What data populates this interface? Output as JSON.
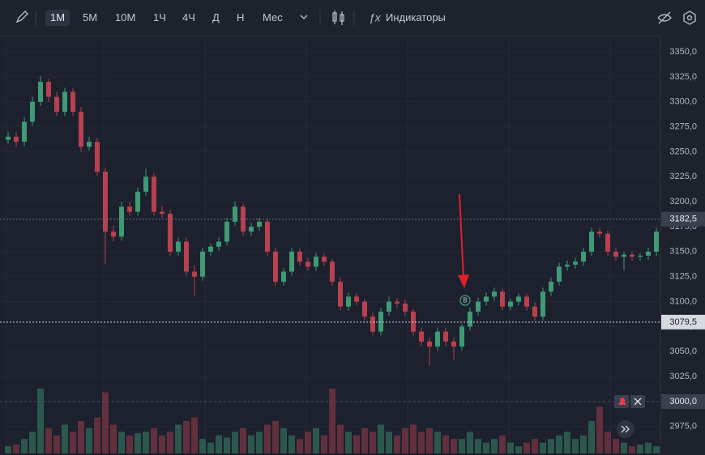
{
  "toolbar": {
    "timeframes": [
      "1M",
      "5M",
      "10M",
      "1Ч",
      "4Ч",
      "Д",
      "Н",
      "Мес"
    ],
    "indicators": "Индикаторы"
  },
  "marker": "B",
  "chart_data": {
    "type": "candlestick",
    "open": [
      3262,
      3265,
      3260,
      3280,
      3300,
      3320,
      3305,
      3290,
      3310,
      3290,
      3255,
      3260,
      3230,
      3170,
      3165,
      3195,
      3190,
      3210,
      3225,
      3190,
      3188,
      3150,
      3160,
      3130,
      3125,
      3150,
      3155,
      3160,
      3180,
      3195,
      3170,
      3175,
      3180,
      3150,
      3120,
      3130,
      3150,
      3140,
      3135,
      3145,
      3140,
      3120,
      3095,
      3105,
      3100,
      3085,
      3070,
      3090,
      3100,
      3098,
      3090,
      3070,
      3060,
      3055,
      3070,
      3060,
      3055,
      3075,
      3090,
      3100,
      3105,
      3110,
      3095,
      3100,
      3105,
      3095,
      3085,
      3110,
      3120,
      3135,
      3137,
      3140,
      3150,
      3170,
      3168,
      3150,
      3145,
      3147,
      3145,
      3146,
      3150
    ],
    "high": [
      3270,
      3270,
      3285,
      3305,
      3326,
      3323,
      3310,
      3314,
      3314,
      3295,
      3265,
      3264,
      3234,
      3176,
      3200,
      3200,
      3214,
      3233,
      3229,
      3196,
      3192,
      3164,
      3164,
      3136,
      3154,
      3158,
      3164,
      3184,
      3200,
      3198,
      3179,
      3184,
      3183,
      3154,
      3134,
      3154,
      3153,
      3144,
      3149,
      3148,
      3143,
      3124,
      3109,
      3108,
      3103,
      3089,
      3094,
      3105,
      3104,
      3102,
      3093,
      3074,
      3064,
      3074,
      3074,
      3064,
      3078,
      3094,
      3104,
      3109,
      3114,
      3113,
      3103,
      3108,
      3108,
      3099,
      3114,
      3124,
      3139,
      3141,
      3144,
      3154,
      3174,
      3174,
      3171,
      3154,
      3150,
      3150,
      3149,
      3154,
      3174
    ],
    "low": [
      3258,
      3255,
      3256,
      3276,
      3296,
      3300,
      3286,
      3286,
      3286,
      3250,
      3251,
      3226,
      3138,
      3160,
      3161,
      3186,
      3186,
      3206,
      3186,
      3184,
      3146,
      3146,
      3126,
      3106,
      3121,
      3146,
      3151,
      3156,
      3176,
      3166,
      3166,
      3171,
      3146,
      3116,
      3116,
      3126,
      3136,
      3131,
      3131,
      3136,
      3116,
      3091,
      3091,
      3096,
      3081,
      3066,
      3066,
      3086,
      3094,
      3086,
      3066,
      3056,
      3036,
      3051,
      3056,
      3042,
      3051,
      3071,
      3086,
      3096,
      3101,
      3091,
      3091,
      3096,
      3091,
      3081,
      3081,
      3106,
      3116,
      3131,
      3133,
      3136,
      3146,
      3164,
      3146,
      3141,
      3131,
      3141,
      3141,
      3142,
      3146
    ],
    "close": [
      3265,
      3260,
      3280,
      3300,
      3320,
      3305,
      3290,
      3310,
      3290,
      3255,
      3260,
      3230,
      3170,
      3165,
      3195,
      3190,
      3210,
      3225,
      3190,
      3188,
      3150,
      3160,
      3130,
      3125,
      3150,
      3155,
      3160,
      3180,
      3195,
      3170,
      3175,
      3180,
      3150,
      3120,
      3130,
      3150,
      3140,
      3135,
      3145,
      3140,
      3120,
      3095,
      3105,
      3100,
      3085,
      3070,
      3090,
      3100,
      3098,
      3090,
      3070,
      3060,
      3055,
      3070,
      3060,
      3055,
      3075,
      3090,
      3100,
      3105,
      3110,
      3095,
      3100,
      3105,
      3095,
      3085,
      3110,
      3120,
      3135,
      3137,
      3140,
      3150,
      3170,
      3168,
      3150,
      3145,
      3147,
      3145,
      3146,
      3150,
      3170
    ],
    "volume": [
      10,
      12,
      20,
      30,
      90,
      35,
      25,
      40,
      30,
      45,
      35,
      50,
      85,
      40,
      30,
      25,
      28,
      30,
      35,
      25,
      30,
      40,
      45,
      50,
      20,
      15,
      25,
      22,
      30,
      35,
      25,
      30,
      40,
      45,
      35,
      25,
      20,
      30,
      35,
      25,
      90,
      40,
      30,
      25,
      35,
      30,
      40,
      30,
      25,
      35,
      40,
      30,
      35,
      30,
      25,
      20,
      20,
      30,
      20,
      15,
      20,
      25,
      15,
      10,
      15,
      20,
      15,
      20,
      25,
      30,
      20,
      25,
      45,
      65,
      30,
      20,
      15,
      10,
      12,
      15,
      10
    ],
    "up_color": "#3f9a75",
    "down_color": "#b8404f",
    "ylim": [
      2946.5,
      3366.2
    ],
    "yticks": [
      {
        "value": 3350,
        "label": "3350,0"
      },
      {
        "value": 3325,
        "label": "3325,0"
      },
      {
        "value": 3300,
        "label": "3300,0"
      },
      {
        "value": 3275,
        "label": "3275,0"
      },
      {
        "value": 3250,
        "label": "3250,0"
      },
      {
        "value": 3225,
        "label": "3225,0"
      },
      {
        "value": 3200,
        "label": "3200,0"
      },
      {
        "value": 3175,
        "label": "3175,0"
      },
      {
        "value": 3150,
        "label": "3150,0"
      },
      {
        "value": 3125,
        "label": "3125,0"
      },
      {
        "value": 3100,
        "label": "3100,0"
      },
      {
        "value": 3075,
        "label": "3075,0"
      },
      {
        "value": 3050,
        "label": "3050,0"
      },
      {
        "value": 3025,
        "label": "3025,0"
      },
      {
        "value": 3000,
        "label": "3000,0"
      },
      {
        "value": 2975,
        "label": "2975,0"
      }
    ],
    "price_lines": [
      {
        "value": 3182.5,
        "label": "3182,5"
      },
      {
        "value": 3079.5,
        "label": "3079,5"
      }
    ],
    "alert": {
      "value": 3000,
      "label": "3000,0"
    },
    "grid": true
  }
}
